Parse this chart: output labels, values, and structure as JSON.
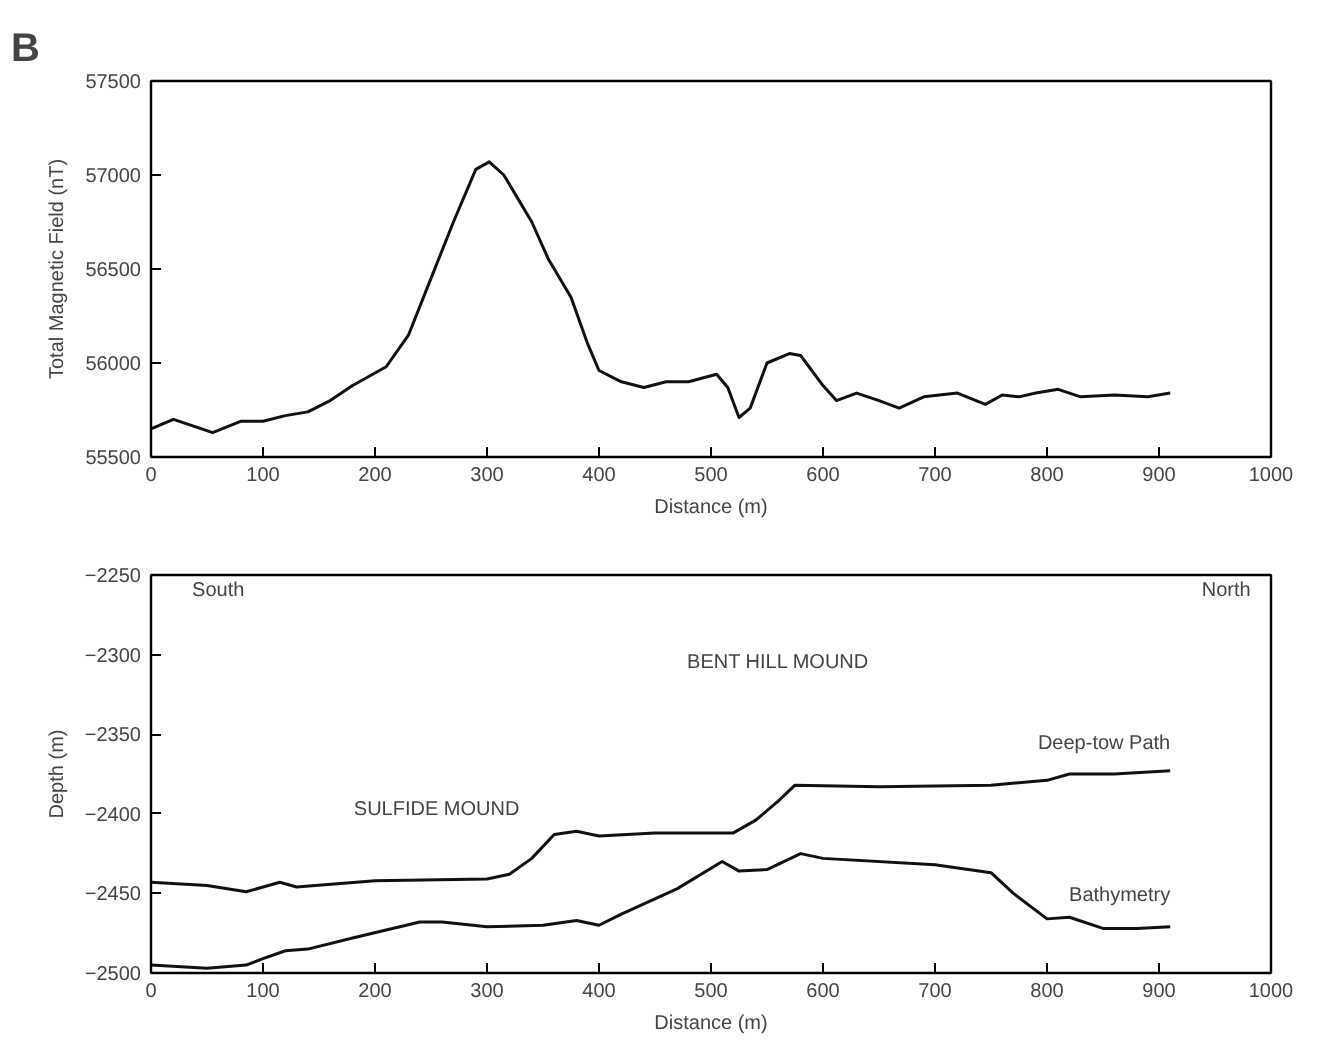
{
  "chart_data": [
    {
      "type": "line",
      "title": "B",
      "xlabel": "Distance (m)",
      "ylabel": "Total Magnetic Field (nT)",
      "xlim": [
        0,
        1000
      ],
      "xticks": [
        0,
        100,
        200,
        300,
        400,
        500,
        600,
        700,
        800,
        900,
        1000
      ],
      "ylim": [
        55500,
        57500
      ],
      "yticks": [
        55500,
        56000,
        56500,
        57000,
        57500
      ],
      "grid": false,
      "legend": false,
      "series": [
        {
          "color": "#111111",
          "x": [
            0,
            20,
            40,
            55,
            80,
            100,
            120,
            140,
            160,
            180,
            210,
            230,
            250,
            270,
            290,
            302,
            315,
            340,
            355,
            375,
            390,
            400,
            420,
            440,
            460,
            480,
            505,
            515,
            525,
            535,
            550,
            570,
            580,
            600,
            612,
            630,
            650,
            668,
            690,
            720,
            745,
            760,
            775,
            790,
            810,
            830,
            860,
            890,
            910
          ],
          "values": [
            55650,
            55700,
            55660,
            55630,
            55690,
            55690,
            55720,
            55740,
            55800,
            55880,
            55980,
            56150,
            56450,
            56750,
            57030,
            57070,
            57000,
            56750,
            56550,
            56350,
            56100,
            55960,
            55900,
            55870,
            55900,
            55900,
            55940,
            55870,
            55710,
            55760,
            56000,
            56050,
            56040,
            55880,
            55800,
            55840,
            55800,
            55760,
            55820,
            55840,
            55780,
            55830,
            55820,
            55840,
            55860,
            55820,
            55830,
            55820,
            55840
          ]
        }
      ]
    },
    {
      "type": "line",
      "xlabel": "Distance (m)",
      "ylabel": "Depth (m)",
      "xlim": [
        0,
        1000
      ],
      "xticks": [
        0,
        100,
        200,
        300,
        400,
        500,
        600,
        700,
        800,
        900,
        1000
      ],
      "ylim": [
        -2500,
        -2250
      ],
      "yticks": [
        -2500,
        -2450,
        -2400,
        -2350,
        -2300,
        -2250
      ],
      "grid": false,
      "legend": false,
      "annotations": [
        "South",
        "North",
        "BENT HILL MOUND",
        "SULFIDE MOUND"
      ],
      "series": [
        {
          "name": "Deep-tow Path",
          "color": "#111111",
          "x": [
            0,
            50,
            85,
            115,
            130,
            200,
            300,
            320,
            340,
            360,
            380,
            400,
            450,
            520,
            540,
            560,
            575,
            650,
            750,
            800,
            820,
            860,
            910
          ],
          "values": [
            -2443,
            -2445,
            -2449,
            -2443,
            -2446,
            -2442,
            -2441,
            -2438,
            -2428,
            -2413,
            -2411,
            -2414,
            -2412,
            -2412,
            -2404,
            -2392,
            -2382,
            -2383,
            -2382,
            -2379,
            -2375,
            -2375,
            -2373
          ]
        },
        {
          "name": "Bathymetry",
          "color": "#111111",
          "x": [
            0,
            50,
            85,
            100,
            120,
            140,
            180,
            240,
            260,
            300,
            350,
            380,
            400,
            420,
            470,
            510,
            525,
            550,
            580,
            600,
            700,
            750,
            770,
            800,
            820,
            850,
            880,
            910
          ],
          "values": [
            -2495,
            -2497,
            -2495,
            -2491,
            -2486,
            -2485,
            -2478,
            -2468,
            -2468,
            -2471,
            -2470,
            -2467,
            -2470,
            -2463,
            -2447,
            -2430,
            -2436,
            -2435,
            -2425,
            -2428,
            -2432,
            -2437,
            -2450,
            -2466,
            -2465,
            -2472,
            -2472,
            -2471
          ]
        }
      ]
    }
  ]
}
